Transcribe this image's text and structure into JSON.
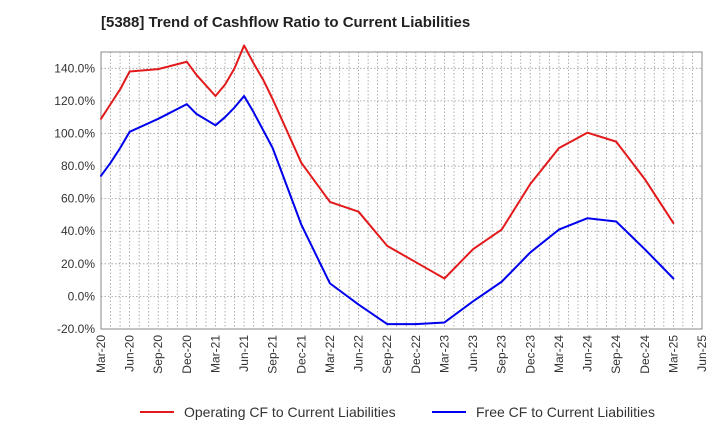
{
  "chart_data": {
    "type": "line",
    "title": "[5388]  Trend of Cashflow Ratio to Current Liabilities",
    "xlabel": "",
    "ylabel": "",
    "x": [
      "Mar-20",
      "Jun-20",
      "Sep-20",
      "Dec-20",
      "Mar-21",
      "Jun-21",
      "Sep-21",
      "Dec-21",
      "Mar-22",
      "Jun-22",
      "Sep-22",
      "Dec-22",
      "Mar-23",
      "Jun-23",
      "Sep-23",
      "Dec-23",
      "Mar-24",
      "Jun-24",
      "Sep-24",
      "Dec-24",
      "Mar-25",
      "Jun-25"
    ],
    "ylim": [
      -20,
      150
    ],
    "yticks": [
      -20,
      0,
      20,
      40,
      60,
      80,
      100,
      120,
      140
    ],
    "ytick_labels": [
      "-20.0%",
      "0.0%",
      "20.0%",
      "40.0%",
      "60.0%",
      "80.0%",
      "100.0%",
      "120.0%",
      "140.0%"
    ],
    "grid": true,
    "legend_position": "bottom",
    "series": [
      {
        "name": "Operating CF to Current Liabilities",
        "color": "#e31a1c",
        "points": [
          [
            "Mar-20",
            109
          ],
          [
            "Apr-20",
            118
          ],
          [
            "May-20",
            127
          ],
          [
            "Jun-20",
            138
          ],
          [
            "Sep-20",
            139.5
          ],
          [
            "Dec-20",
            144
          ],
          [
            "Jan-21",
            136
          ],
          [
            "Mar-21",
            123
          ],
          [
            "Apr-21",
            130
          ],
          [
            "May-21",
            140
          ],
          [
            "Jun-21",
            154
          ],
          [
            "Jul-21",
            143
          ],
          [
            "Aug-21",
            133
          ],
          [
            "Sep-21",
            121
          ],
          [
            "Dec-21",
            82
          ],
          [
            "Mar-22",
            58
          ],
          [
            "Jun-22",
            52
          ],
          [
            "Sep-22",
            31
          ],
          [
            "Dec-22",
            21
          ],
          [
            "Mar-23",
            11
          ],
          [
            "Jun-23",
            29
          ],
          [
            "Sep-23",
            41
          ],
          [
            "Dec-23",
            69
          ],
          [
            "Mar-24",
            91
          ],
          [
            "Jun-24",
            100.5
          ],
          [
            "Sep-24",
            95
          ],
          [
            "Dec-24",
            72
          ],
          [
            "Mar-25",
            45
          ]
        ]
      },
      {
        "name": "Free CF to Current Liabilities",
        "color": "#0000ee",
        "points": [
          [
            "Mar-20",
            74
          ],
          [
            "Apr-20",
            82
          ],
          [
            "May-20",
            91
          ],
          [
            "Jun-20",
            101
          ],
          [
            "Sep-20",
            109
          ],
          [
            "Dec-20",
            118
          ],
          [
            "Jan-21",
            112
          ],
          [
            "Mar-21",
            105
          ],
          [
            "Apr-21",
            110
          ],
          [
            "May-21",
            116
          ],
          [
            "Jun-21",
            123
          ],
          [
            "Jul-21",
            113
          ],
          [
            "Aug-21",
            102
          ],
          [
            "Sep-21",
            91
          ],
          [
            "Dec-21",
            44
          ],
          [
            "Mar-22",
            8
          ],
          [
            "Jun-22",
            -5
          ],
          [
            "Sep-22",
            -17
          ],
          [
            "Dec-22",
            -17
          ],
          [
            "Mar-23",
            -16
          ],
          [
            "Jun-23",
            -3
          ],
          [
            "Sep-23",
            9
          ],
          [
            "Dec-23",
            27
          ],
          [
            "Mar-24",
            41
          ],
          [
            "Jun-24",
            48
          ],
          [
            "Sep-24",
            46
          ],
          [
            "Dec-24",
            29
          ],
          [
            "Mar-25",
            11
          ]
        ]
      }
    ]
  }
}
